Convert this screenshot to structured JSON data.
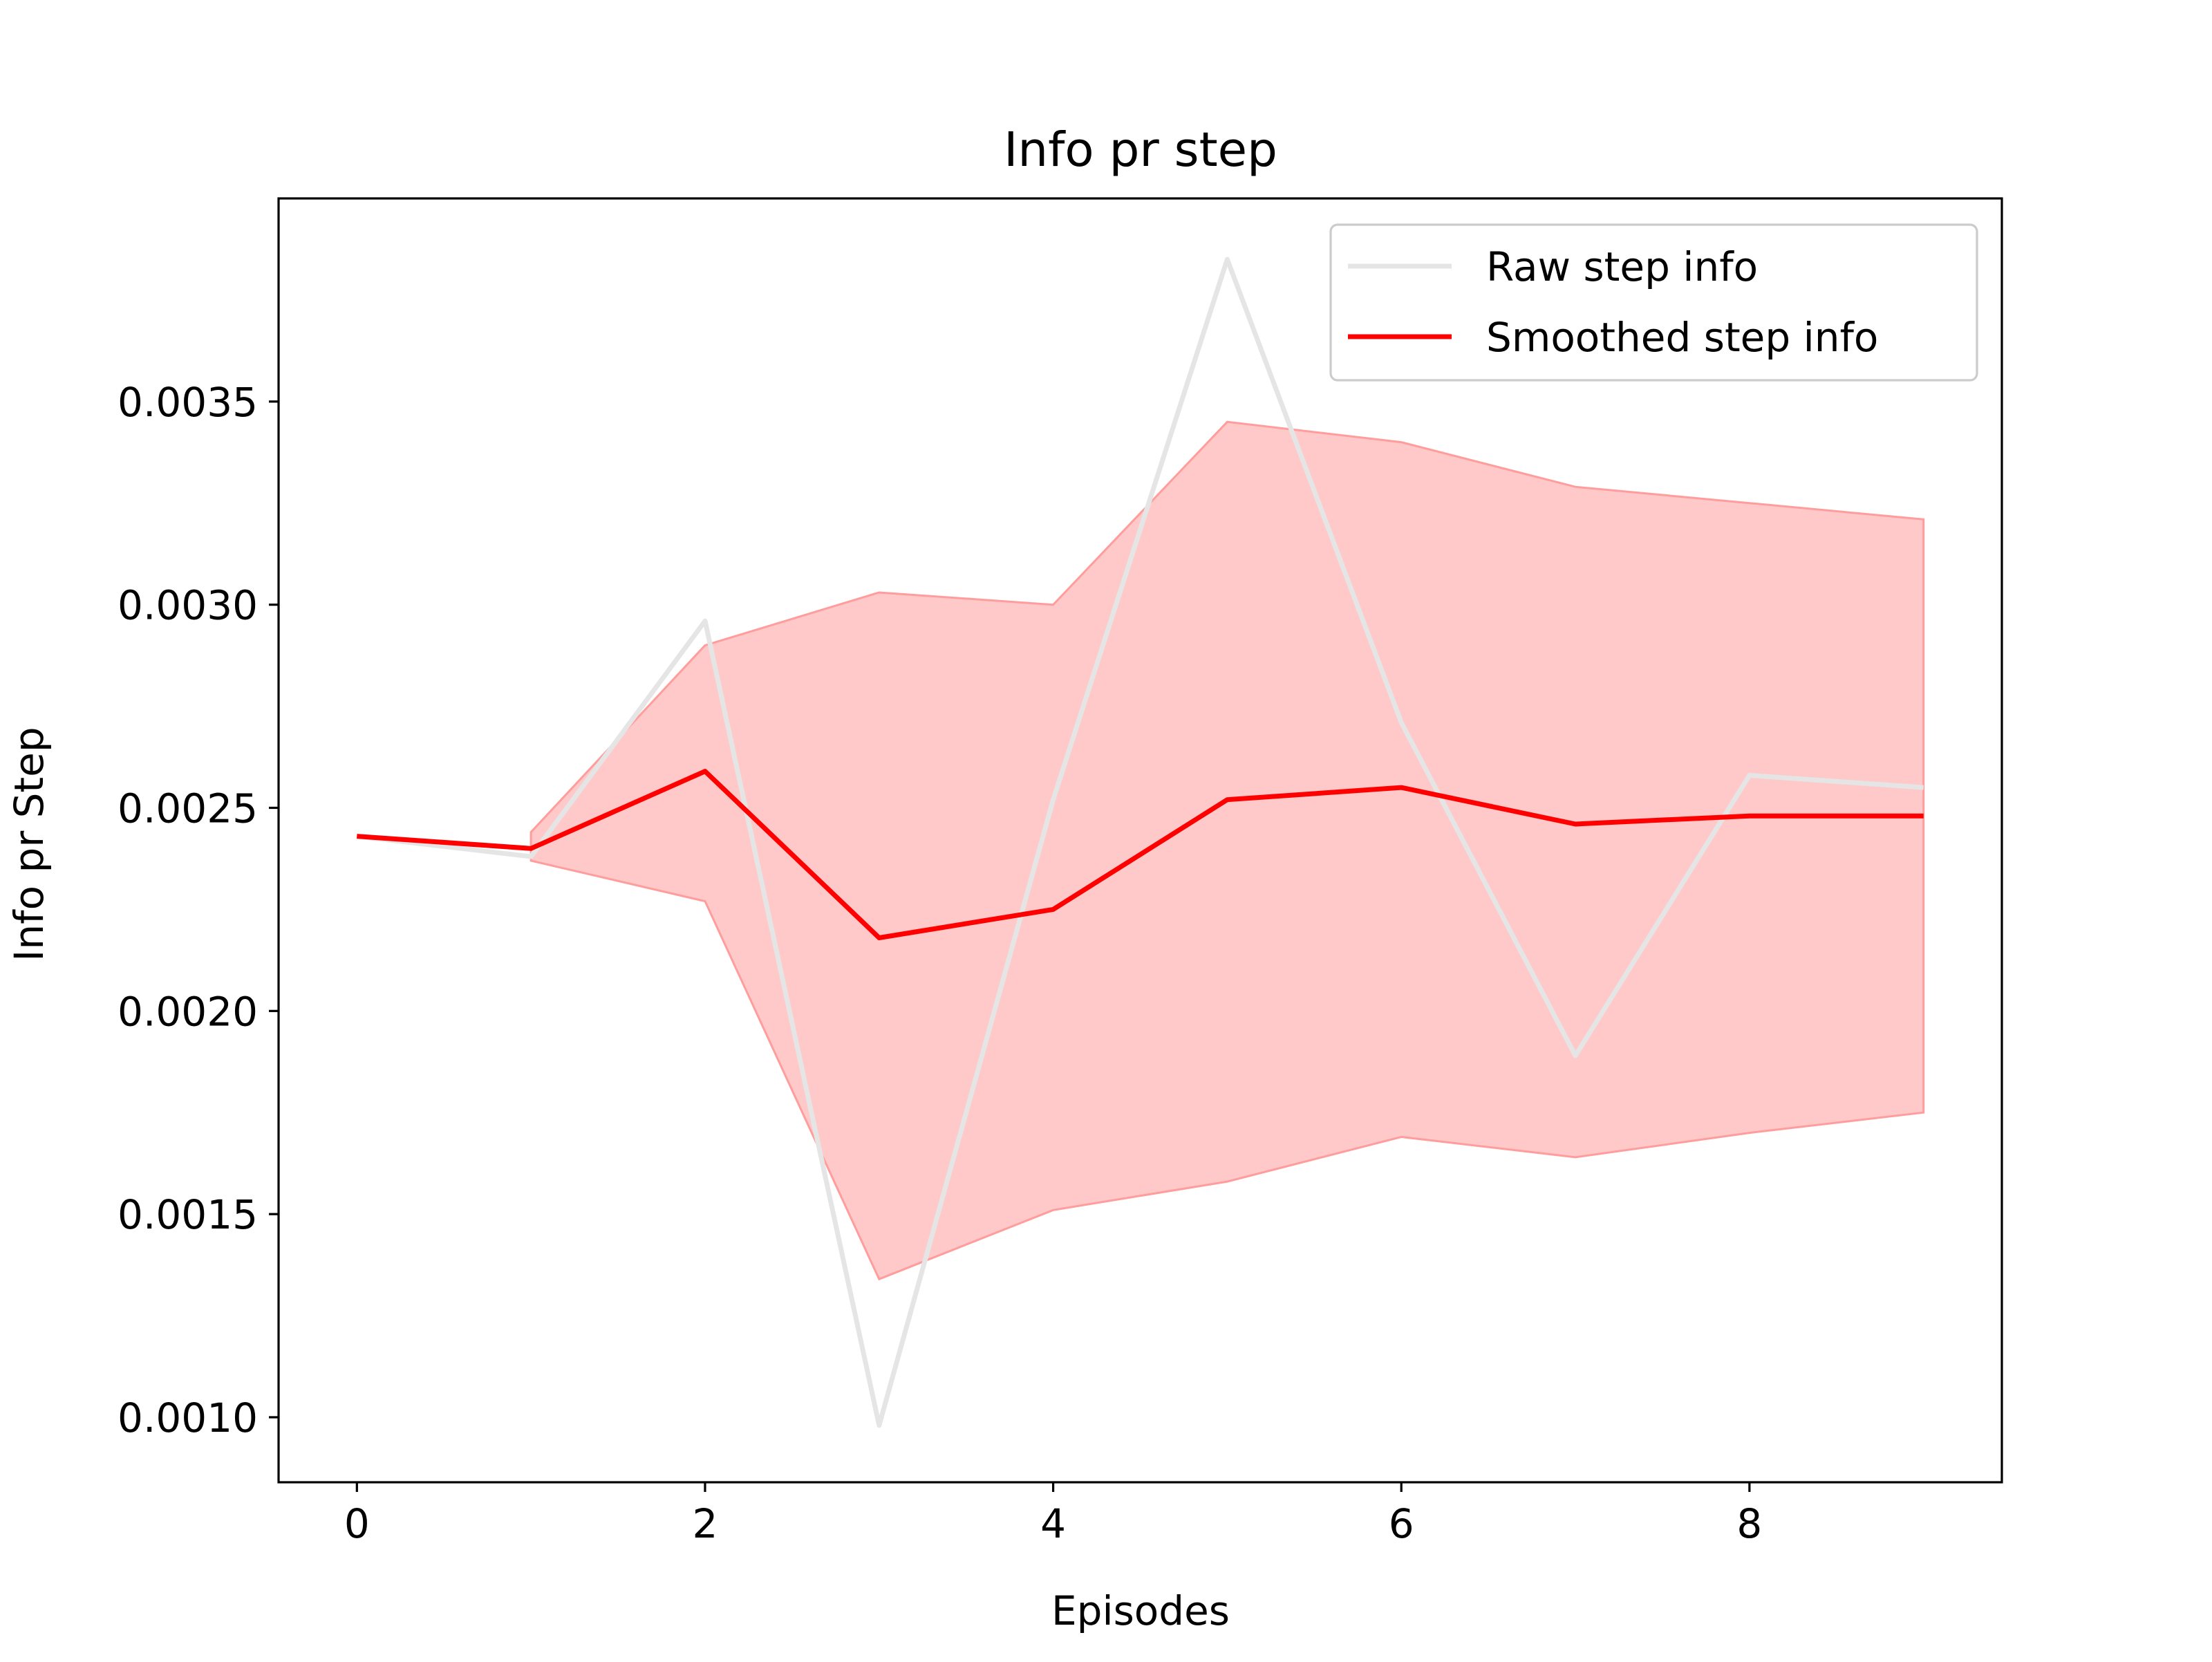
{
  "chart_data": {
    "type": "line",
    "title": "Info pr step",
    "xlabel": "Episodes",
    "ylabel": "Info pr Step",
    "xlim": [
      -0.45,
      9.45
    ],
    "ylim": [
      0.00084,
      0.004
    ],
    "xticks": [
      0,
      2,
      4,
      6,
      8
    ],
    "xtick_labels": [
      "0",
      "2",
      "4",
      "6",
      "8"
    ],
    "yticks": [
      0.001,
      0.0015,
      0.002,
      0.0025,
      0.003,
      0.0035
    ],
    "ytick_labels": [
      "0.0010",
      "0.0015",
      "0.0020",
      "0.0025",
      "0.0030",
      "0.0035"
    ],
    "grid": false,
    "legend_position": "top-right",
    "x": [
      0,
      1,
      2,
      3,
      4,
      5,
      6,
      7,
      8,
      9
    ],
    "series": [
      {
        "name": "Raw step info",
        "color": "#e5e5e5",
        "values": [
          0.00243,
          0.00238,
          0.00296,
          0.00098,
          0.00252,
          0.00385,
          0.00271,
          0.00189,
          0.00258,
          0.00255
        ]
      },
      {
        "name": "Smoothed step info",
        "color": "#ff0000",
        "values": [
          0.00243,
          0.0024,
          0.00259,
          0.00218,
          0.00225,
          0.00252,
          0.00255,
          0.00246,
          0.00248,
          0.00248
        ]
      }
    ],
    "band": {
      "color": "#ffc9c9",
      "edge_color": "#ff9c9c",
      "x": [
        1,
        2,
        3,
        4,
        5,
        6,
        7,
        8,
        9
      ],
      "upper": [
        0.00244,
        0.0029,
        0.00303,
        0.003,
        0.00345,
        0.0034,
        0.00329,
        0.00325,
        0.00321
      ],
      "lower": [
        0.00237,
        0.00227,
        0.00134,
        0.00151,
        0.00158,
        0.00169,
        0.00164,
        0.0017,
        0.00175
      ]
    }
  }
}
